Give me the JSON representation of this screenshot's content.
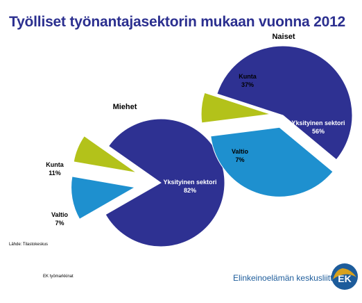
{
  "title": "Työlliset työnantajasektorin mukaan vuonna 2012",
  "chart_data": [
    {
      "type": "pie",
      "title": "Miehet",
      "slices": [
        {
          "label": "Yksityinen sektori",
          "value": 82,
          "value_label": "82%",
          "color": "#2e3192",
          "text_color": "#ffffff"
        },
        {
          "label": "Kunta",
          "value": 11,
          "value_label": "11%",
          "color": "#1e90cf",
          "text_color": "#000000"
        },
        {
          "label": "Valtio",
          "value": 7,
          "value_label": "7%",
          "color": "#b3c21a",
          "text_color": "#000000"
        }
      ]
    },
    {
      "type": "pie",
      "title": "Naiset",
      "slices": [
        {
          "label": "Yksityinen sektori",
          "value": 56,
          "value_label": "56%",
          "color": "#2e3192",
          "text_color": "#ffffff"
        },
        {
          "label": "Kunta",
          "value": 37,
          "value_label": "37%",
          "color": "#1e90cf",
          "text_color": "#000000"
        },
        {
          "label": "Valtio",
          "value": 7,
          "value_label": "7%",
          "color": "#b3c21a",
          "text_color": "#000000"
        }
      ]
    }
  ],
  "footer": {
    "source": "Lähde: Tilastokeskus",
    "left": "EK työmarkkinat",
    "brand": "Elinkeinoelämän keskusliitto",
    "logo_text": "EK"
  }
}
